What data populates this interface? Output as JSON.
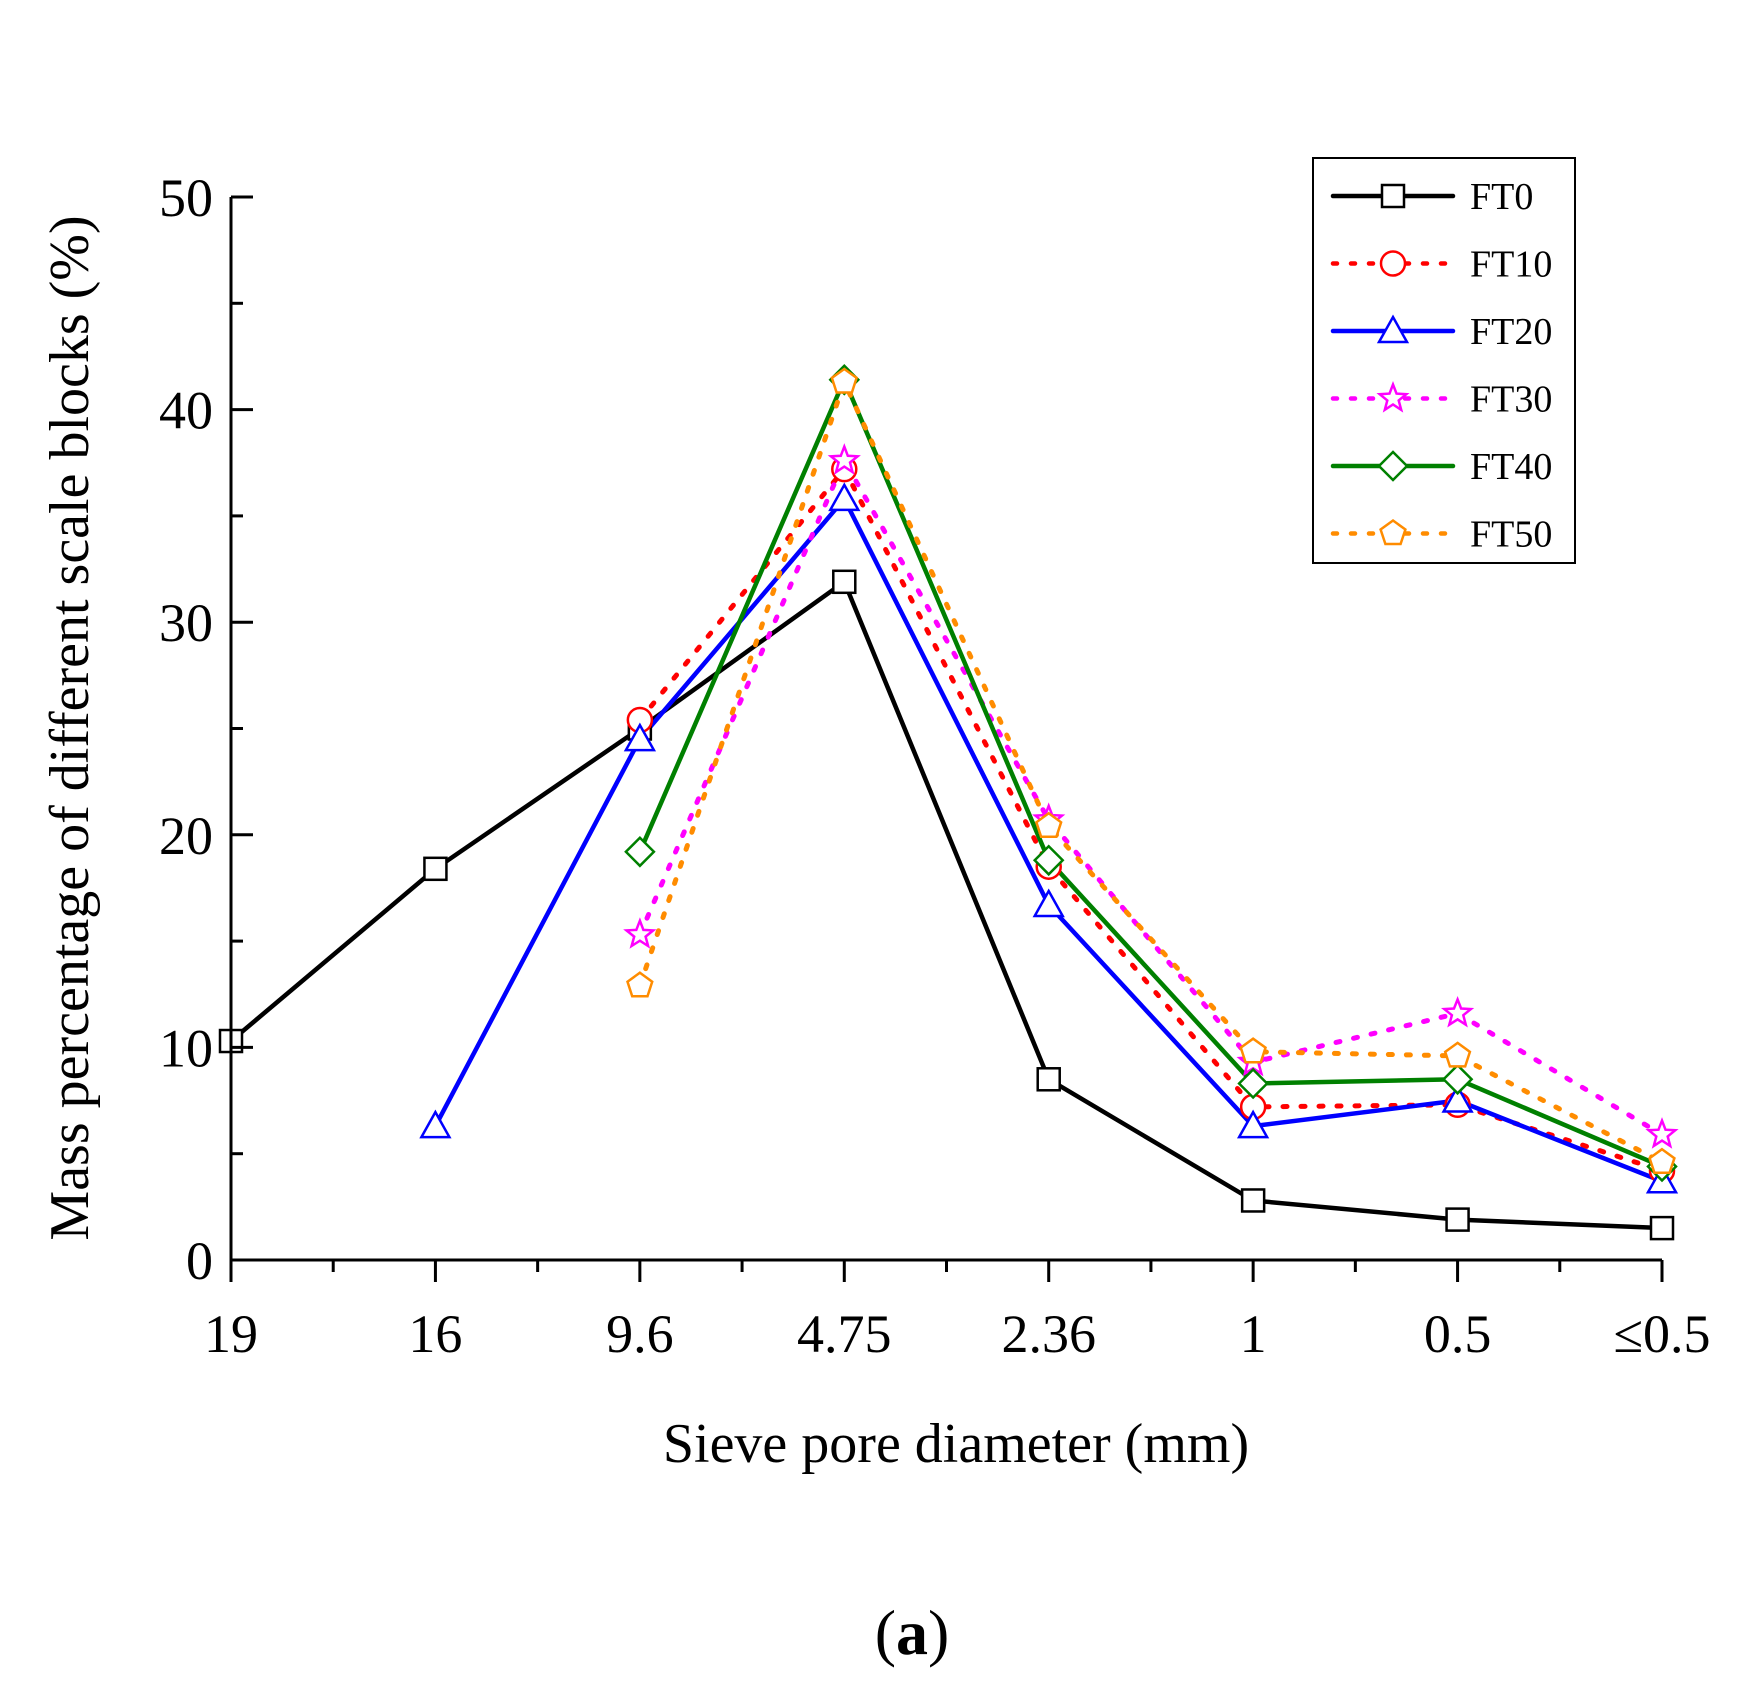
{
  "chart_data": {
    "type": "line",
    "title": "",
    "xlabel": "Sieve pore diameter (mm)",
    "ylabel": "Mass percentage of different scale blocks (%)",
    "categories": [
      "19",
      "16",
      "9.6",
      "4.75",
      "2.36",
      "1",
      "0.5",
      "≤0.5"
    ],
    "ylim": [
      0,
      50
    ],
    "yticks": [
      "0",
      "10",
      "20",
      "30",
      "40",
      "50"
    ],
    "grid": false,
    "legend_position": "top-right",
    "caption_open": "(",
    "caption_letter": "a",
    "caption_close": ")",
    "series": [
      {
        "name": "FT0",
        "color": "#000000",
        "dash": "solid",
        "marker": "square",
        "values": [
          10.3,
          18.4,
          25.0,
          31.9,
          8.5,
          2.8,
          1.9,
          1.5
        ]
      },
      {
        "name": "FT10",
        "color": "#ff0000",
        "dash": "dotted",
        "marker": "circle",
        "values": [
          null,
          null,
          25.4,
          37.2,
          18.5,
          7.2,
          7.3,
          4.2
        ]
      },
      {
        "name": "FT20",
        "color": "#0000ff",
        "dash": "solid",
        "marker": "triangle",
        "values": [
          null,
          6.3,
          24.5,
          35.8,
          16.7,
          6.3,
          7.5,
          3.7
        ]
      },
      {
        "name": "FT30",
        "color": "#ff00ff",
        "dash": "dotted",
        "marker": "star",
        "values": [
          null,
          null,
          15.3,
          37.6,
          20.7,
          9.3,
          11.6,
          5.9
        ]
      },
      {
        "name": "FT40",
        "color": "#008000",
        "dash": "solid",
        "marker": "diamond",
        "values": [
          null,
          null,
          19.2,
          41.4,
          18.8,
          8.3,
          8.5,
          4.4
        ]
      },
      {
        "name": "FT50",
        "color": "#ff8c00",
        "dash": "dotted",
        "marker": "pentagon",
        "values": [
          null,
          null,
          12.9,
          41.3,
          20.4,
          9.8,
          9.6,
          4.6
        ]
      }
    ]
  }
}
